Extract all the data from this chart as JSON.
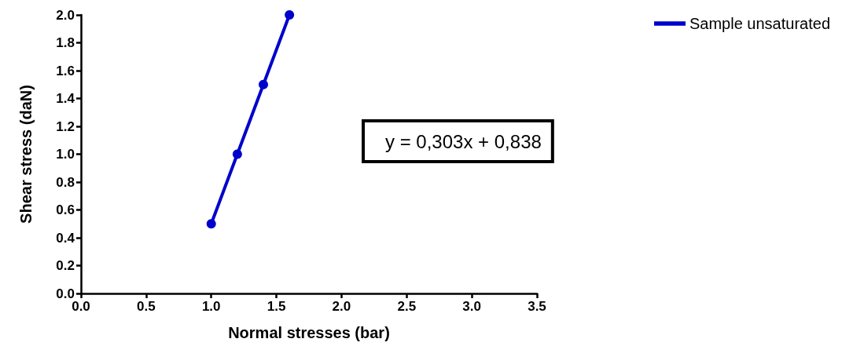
{
  "chart_data": {
    "type": "line",
    "xlabel": "Normal stresses (bar)",
    "ylabel": "Shear stress (daN)",
    "annotations": [
      "y = 0,303x + 0,838"
    ],
    "x": [
      1.0,
      1.2,
      1.4,
      1.6
    ],
    "series": [
      {
        "name": "Sample unsaturated",
        "color": "#0000cc",
        "values": [
          0.5,
          1.0,
          1.5,
          2.0
        ]
      }
    ],
    "xlim": [
      0,
      3.5
    ],
    "xticks": [
      {
        "value": 0,
        "label": "0.0"
      },
      {
        "value": 0.5,
        "label": "0.5"
      },
      {
        "value": 1,
        "label": "1.0"
      },
      {
        "value": 1.5,
        "label": "1.5"
      },
      {
        "value": 2,
        "label": "2.0"
      },
      {
        "value": 2.5,
        "label": "2.5"
      },
      {
        "value": 3,
        "label": "3.0"
      },
      {
        "value": 3.5,
        "label": "3.5"
      }
    ],
    "ylim": [
      0,
      2
    ],
    "yticks": [
      {
        "value": 0,
        "label": "0.0"
      },
      {
        "value": 0.2,
        "label": "0.2"
      },
      {
        "value": 0.4,
        "label": "0.4"
      },
      {
        "value": 0.6,
        "label": "0.6"
      },
      {
        "value": 0.8,
        "label": "0.8"
      },
      {
        "value": 1,
        "label": "1.0"
      },
      {
        "value": 1.2,
        "label": "1.2"
      },
      {
        "value": 1.4,
        "label": "1.4"
      },
      {
        "value": 1.6,
        "label": "1.6"
      },
      {
        "value": 1.8,
        "label": "1.8"
      },
      {
        "value": 2,
        "label": "2.0"
      }
    ],
    "grid": false,
    "legend": "top right",
    "marker": "circle",
    "line_style": "solid"
  }
}
